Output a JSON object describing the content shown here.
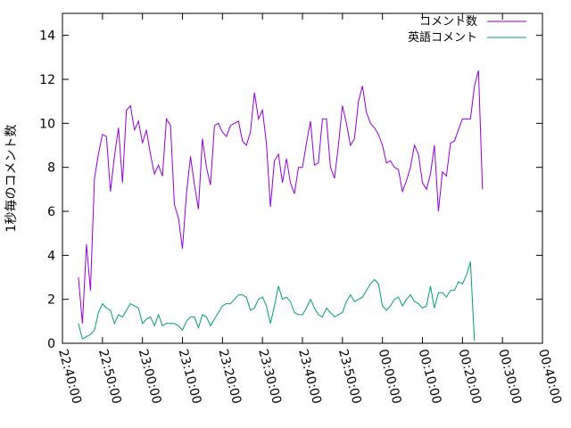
{
  "chart_data": {
    "type": "line",
    "ylabel": "1秒毎のコメント数",
    "xlabel": "",
    "ylim": [
      0,
      15
    ],
    "yticks": [
      0,
      2,
      4,
      6,
      8,
      10,
      12,
      14
    ],
    "xlim": [
      "22:40:00",
      "00:40:00"
    ],
    "xticks": [
      "22:40:00",
      "22:50:00",
      "23:00:00",
      "23:10:00",
      "23:20:00",
      "23:30:00",
      "23:40:00",
      "23:50:00",
      "00:00:00",
      "00:10:00",
      "00:20:00",
      "00:30:00",
      "00:40:00"
    ],
    "legend_position": "top-right",
    "grid": false,
    "series": [
      {
        "name": "コメント数",
        "color": "#9400d3",
        "points": [
          [
            "22:44:00",
            3.0
          ],
          [
            "22:45:00",
            0.9
          ],
          [
            "22:46:00",
            4.5
          ],
          [
            "22:47:00",
            2.4
          ],
          [
            "22:48:00",
            7.5
          ],
          [
            "22:49:00",
            8.6
          ],
          [
            "22:50:00",
            9.5
          ],
          [
            "22:51:00",
            9.4
          ],
          [
            "22:52:00",
            6.9
          ],
          [
            "22:53:00",
            8.5
          ],
          [
            "22:54:00",
            9.8
          ],
          [
            "22:55:00",
            7.3
          ],
          [
            "22:56:00",
            10.6
          ],
          [
            "22:57:00",
            10.8
          ],
          [
            "22:58:00",
            9.7
          ],
          [
            "22:59:00",
            10.1
          ],
          [
            "23:00:00",
            9.1
          ],
          [
            "23:01:00",
            9.7
          ],
          [
            "23:02:00",
            8.6
          ],
          [
            "23:03:00",
            7.7
          ],
          [
            "23:04:00",
            8.1
          ],
          [
            "23:05:00",
            7.6
          ],
          [
            "23:06:00",
            10.2
          ],
          [
            "23:07:00",
            9.9
          ],
          [
            "23:08:00",
            6.3
          ],
          [
            "23:09:00",
            5.7
          ],
          [
            "23:10:00",
            4.3
          ],
          [
            "23:11:00",
            6.8
          ],
          [
            "23:12:00",
            8.5
          ],
          [
            "23:13:00",
            7.2
          ],
          [
            "23:14:00",
            6.1
          ],
          [
            "23:15:00",
            9.3
          ],
          [
            "23:16:00",
            8.0
          ],
          [
            "23:17:00",
            7.2
          ],
          [
            "23:18:00",
            9.9
          ],
          [
            "23:19:00",
            10.0
          ],
          [
            "23:20:00",
            9.6
          ],
          [
            "23:21:00",
            9.4
          ],
          [
            "23:22:00",
            9.9
          ],
          [
            "23:23:00",
            10.0
          ],
          [
            "23:24:00",
            10.1
          ],
          [
            "23:25:00",
            9.2
          ],
          [
            "23:26:00",
            9.0
          ],
          [
            "23:27:00",
            9.6
          ],
          [
            "23:28:00",
            11.4
          ],
          [
            "23:29:00",
            10.2
          ],
          [
            "23:30:00",
            10.6
          ],
          [
            "23:31:00",
            9.1
          ],
          [
            "23:32:00",
            6.2
          ],
          [
            "23:33:00",
            8.3
          ],
          [
            "23:34:00",
            8.6
          ],
          [
            "23:35:00",
            7.3
          ],
          [
            "23:36:00",
            8.4
          ],
          [
            "23:37:00",
            7.3
          ],
          [
            "23:38:00",
            6.8
          ],
          [
            "23:39:00",
            8.0
          ],
          [
            "23:40:00",
            8.0
          ],
          [
            "23:41:00",
            9.1
          ],
          [
            "23:42:00",
            10.1
          ],
          [
            "23:43:00",
            8.1
          ],
          [
            "23:44:00",
            8.2
          ],
          [
            "23:45:00",
            10.2
          ],
          [
            "23:46:00",
            10.2
          ],
          [
            "23:47:00",
            8.0
          ],
          [
            "23:48:00",
            7.5
          ],
          [
            "23:49:00",
            9.0
          ],
          [
            "23:50:00",
            10.8
          ],
          [
            "23:51:00",
            10.0
          ],
          [
            "23:52:00",
            9.0
          ],
          [
            "23:53:00",
            9.3
          ],
          [
            "23:54:00",
            11.0
          ],
          [
            "23:55:00",
            11.7
          ],
          [
            "23:56:00",
            10.5
          ],
          [
            "23:57:00",
            10.0
          ],
          [
            "23:58:00",
            9.8
          ],
          [
            "23:59:00",
            9.5
          ],
          [
            "00:00:00",
            9.0
          ],
          [
            "00:01:00",
            8.2
          ],
          [
            "00:02:00",
            8.3
          ],
          [
            "00:03:00",
            8.0
          ],
          [
            "00:04:00",
            7.9
          ],
          [
            "00:05:00",
            6.9
          ],
          [
            "00:06:00",
            7.4
          ],
          [
            "00:07:00",
            8.0
          ],
          [
            "00:08:00",
            9.0
          ],
          [
            "00:09:00",
            8.6
          ],
          [
            "00:10:00",
            7.3
          ],
          [
            "00:11:00",
            7.0
          ],
          [
            "00:12:00",
            7.7
          ],
          [
            "00:13:00",
            9.0
          ],
          [
            "00:14:00",
            6.0
          ],
          [
            "00:15:00",
            7.8
          ],
          [
            "00:16:00",
            7.6
          ],
          [
            "00:17:00",
            9.1
          ],
          [
            "00:18:00",
            9.2
          ],
          [
            "00:19:00",
            9.7
          ],
          [
            "00:20:00",
            10.2
          ],
          [
            "00:21:00",
            10.2
          ],
          [
            "00:22:00",
            10.2
          ],
          [
            "00:23:00",
            11.7
          ],
          [
            "00:24:00",
            12.4
          ],
          [
            "00:25:00",
            7.0
          ]
        ]
      },
      {
        "name": "英語コメント",
        "color": "#009e73",
        "points": [
          [
            "22:44:00",
            0.9
          ],
          [
            "22:45:00",
            0.2
          ],
          [
            "22:46:00",
            0.3
          ],
          [
            "22:47:00",
            0.4
          ],
          [
            "22:48:00",
            0.6
          ],
          [
            "22:49:00",
            1.4
          ],
          [
            "22:50:00",
            1.8
          ],
          [
            "22:51:00",
            1.6
          ],
          [
            "22:52:00",
            1.5
          ],
          [
            "22:53:00",
            0.9
          ],
          [
            "22:54:00",
            1.3
          ],
          [
            "22:55:00",
            1.2
          ],
          [
            "22:56:00",
            1.5
          ],
          [
            "22:57:00",
            1.8
          ],
          [
            "22:58:00",
            1.7
          ],
          [
            "22:59:00",
            1.6
          ],
          [
            "23:00:00",
            0.9
          ],
          [
            "23:01:00",
            1.1
          ],
          [
            "23:02:00",
            1.2
          ],
          [
            "23:03:00",
            0.8
          ],
          [
            "23:04:00",
            1.3
          ],
          [
            "23:05:00",
            0.8
          ],
          [
            "23:06:00",
            0.9
          ],
          [
            "23:07:00",
            0.9
          ],
          [
            "23:08:00",
            0.9
          ],
          [
            "23:09:00",
            0.8
          ],
          [
            "23:10:00",
            0.6
          ],
          [
            "23:11:00",
            1.0
          ],
          [
            "23:12:00",
            1.2
          ],
          [
            "23:13:00",
            1.2
          ],
          [
            "23:14:00",
            0.7
          ],
          [
            "23:15:00",
            1.3
          ],
          [
            "23:16:00",
            1.2
          ],
          [
            "23:17:00",
            0.8
          ],
          [
            "23:18:00",
            1.1
          ],
          [
            "23:19:00",
            1.4
          ],
          [
            "23:20:00",
            1.7
          ],
          [
            "23:21:00",
            1.8
          ],
          [
            "23:22:00",
            1.8
          ],
          [
            "23:23:00",
            2.0
          ],
          [
            "23:24:00",
            2.2
          ],
          [
            "23:25:00",
            2.2
          ],
          [
            "23:26:00",
            2.1
          ],
          [
            "23:27:00",
            1.5
          ],
          [
            "23:28:00",
            1.6
          ],
          [
            "23:29:00",
            2.0
          ],
          [
            "23:30:00",
            2.1
          ],
          [
            "23:31:00",
            1.7
          ],
          [
            "23:32:00",
            0.9
          ],
          [
            "23:33:00",
            1.7
          ],
          [
            "23:34:00",
            2.6
          ],
          [
            "23:35:00",
            2.0
          ],
          [
            "23:36:00",
            2.1
          ],
          [
            "23:37:00",
            1.9
          ],
          [
            "23:38:00",
            1.4
          ],
          [
            "23:39:00",
            1.3
          ],
          [
            "23:40:00",
            1.3
          ],
          [
            "23:41:00",
            1.6
          ],
          [
            "23:42:00",
            2.0
          ],
          [
            "23:43:00",
            1.6
          ],
          [
            "23:44:00",
            1.3
          ],
          [
            "23:45:00",
            1.2
          ],
          [
            "23:46:00",
            1.6
          ],
          [
            "23:47:00",
            1.4
          ],
          [
            "23:48:00",
            1.2
          ],
          [
            "23:49:00",
            1.3
          ],
          [
            "23:50:00",
            1.4
          ],
          [
            "23:51:00",
            1.9
          ],
          [
            "23:52:00",
            2.2
          ],
          [
            "23:53:00",
            1.9
          ],
          [
            "23:54:00",
            2.0
          ],
          [
            "23:55:00",
            2.1
          ],
          [
            "23:56:00",
            2.4
          ],
          [
            "23:57:00",
            2.7
          ],
          [
            "23:58:00",
            2.9
          ],
          [
            "23:59:00",
            2.7
          ],
          [
            "00:00:00",
            1.7
          ],
          [
            "00:01:00",
            1.5
          ],
          [
            "00:02:00",
            1.7
          ],
          [
            "00:03:00",
            2.0
          ],
          [
            "00:04:00",
            2.1
          ],
          [
            "00:05:00",
            1.7
          ],
          [
            "00:06:00",
            2.0
          ],
          [
            "00:07:00",
            2.2
          ],
          [
            "00:08:00",
            1.9
          ],
          [
            "00:09:00",
            1.8
          ],
          [
            "00:10:00",
            1.6
          ],
          [
            "00:11:00",
            1.7
          ],
          [
            "00:12:00",
            2.6
          ],
          [
            "00:13:00",
            1.6
          ],
          [
            "00:14:00",
            2.3
          ],
          [
            "00:15:00",
            2.3
          ],
          [
            "00:16:00",
            2.1
          ],
          [
            "00:17:00",
            2.4
          ],
          [
            "00:18:00",
            2.4
          ],
          [
            "00:19:00",
            2.8
          ],
          [
            "00:20:00",
            2.7
          ],
          [
            "00:21:00",
            3.1
          ],
          [
            "00:22:00",
            3.7
          ],
          [
            "00:23:00",
            0.1
          ]
        ]
      }
    ]
  }
}
